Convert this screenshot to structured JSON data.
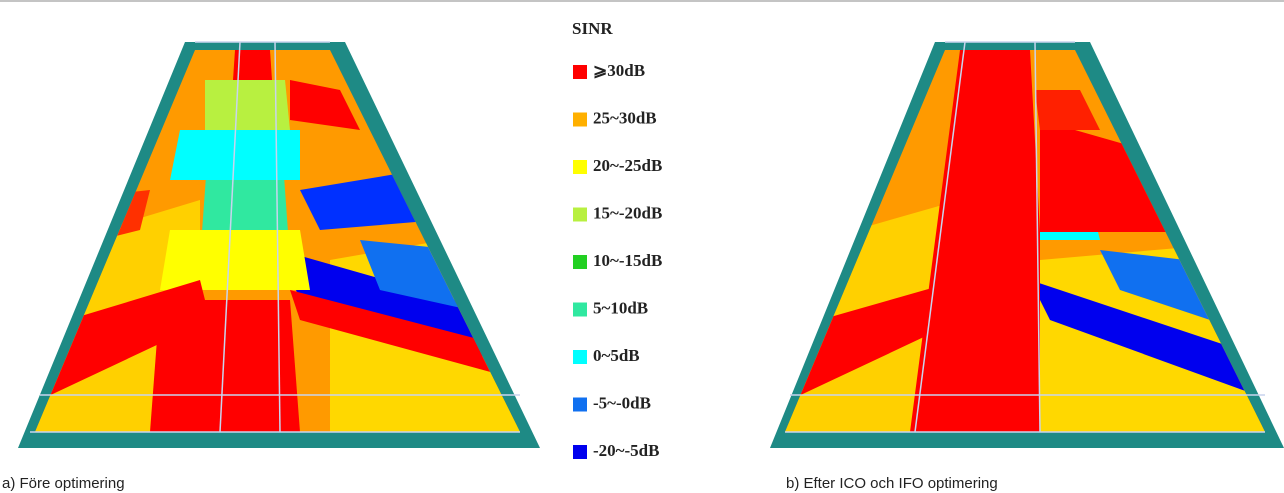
{
  "legend": {
    "title": "SINR",
    "items": [
      {
        "label": "⩾30dB",
        "color": "#ff0000"
      },
      {
        "label": "25~30dB",
        "color": "#ffb000"
      },
      {
        "label": "20~-25dB",
        "color": "#ffff00"
      },
      {
        "label": "15~-20dB",
        "color": "#b8f040"
      },
      {
        "label": "10~-15dB",
        "color": "#22d022"
      },
      {
        "label": "5~10dB",
        "color": "#30e8a0"
      },
      {
        "label": "0~5dB",
        "color": "#00ffff"
      },
      {
        "label": "-5~-0dB",
        "color": "#1070f0"
      },
      {
        "label": "-20~-5dB",
        "color": "#0000ee"
      }
    ]
  },
  "captions": {
    "a": "a) Före optimering",
    "b": "b) Efter ICO och IFO optimering"
  }
}
